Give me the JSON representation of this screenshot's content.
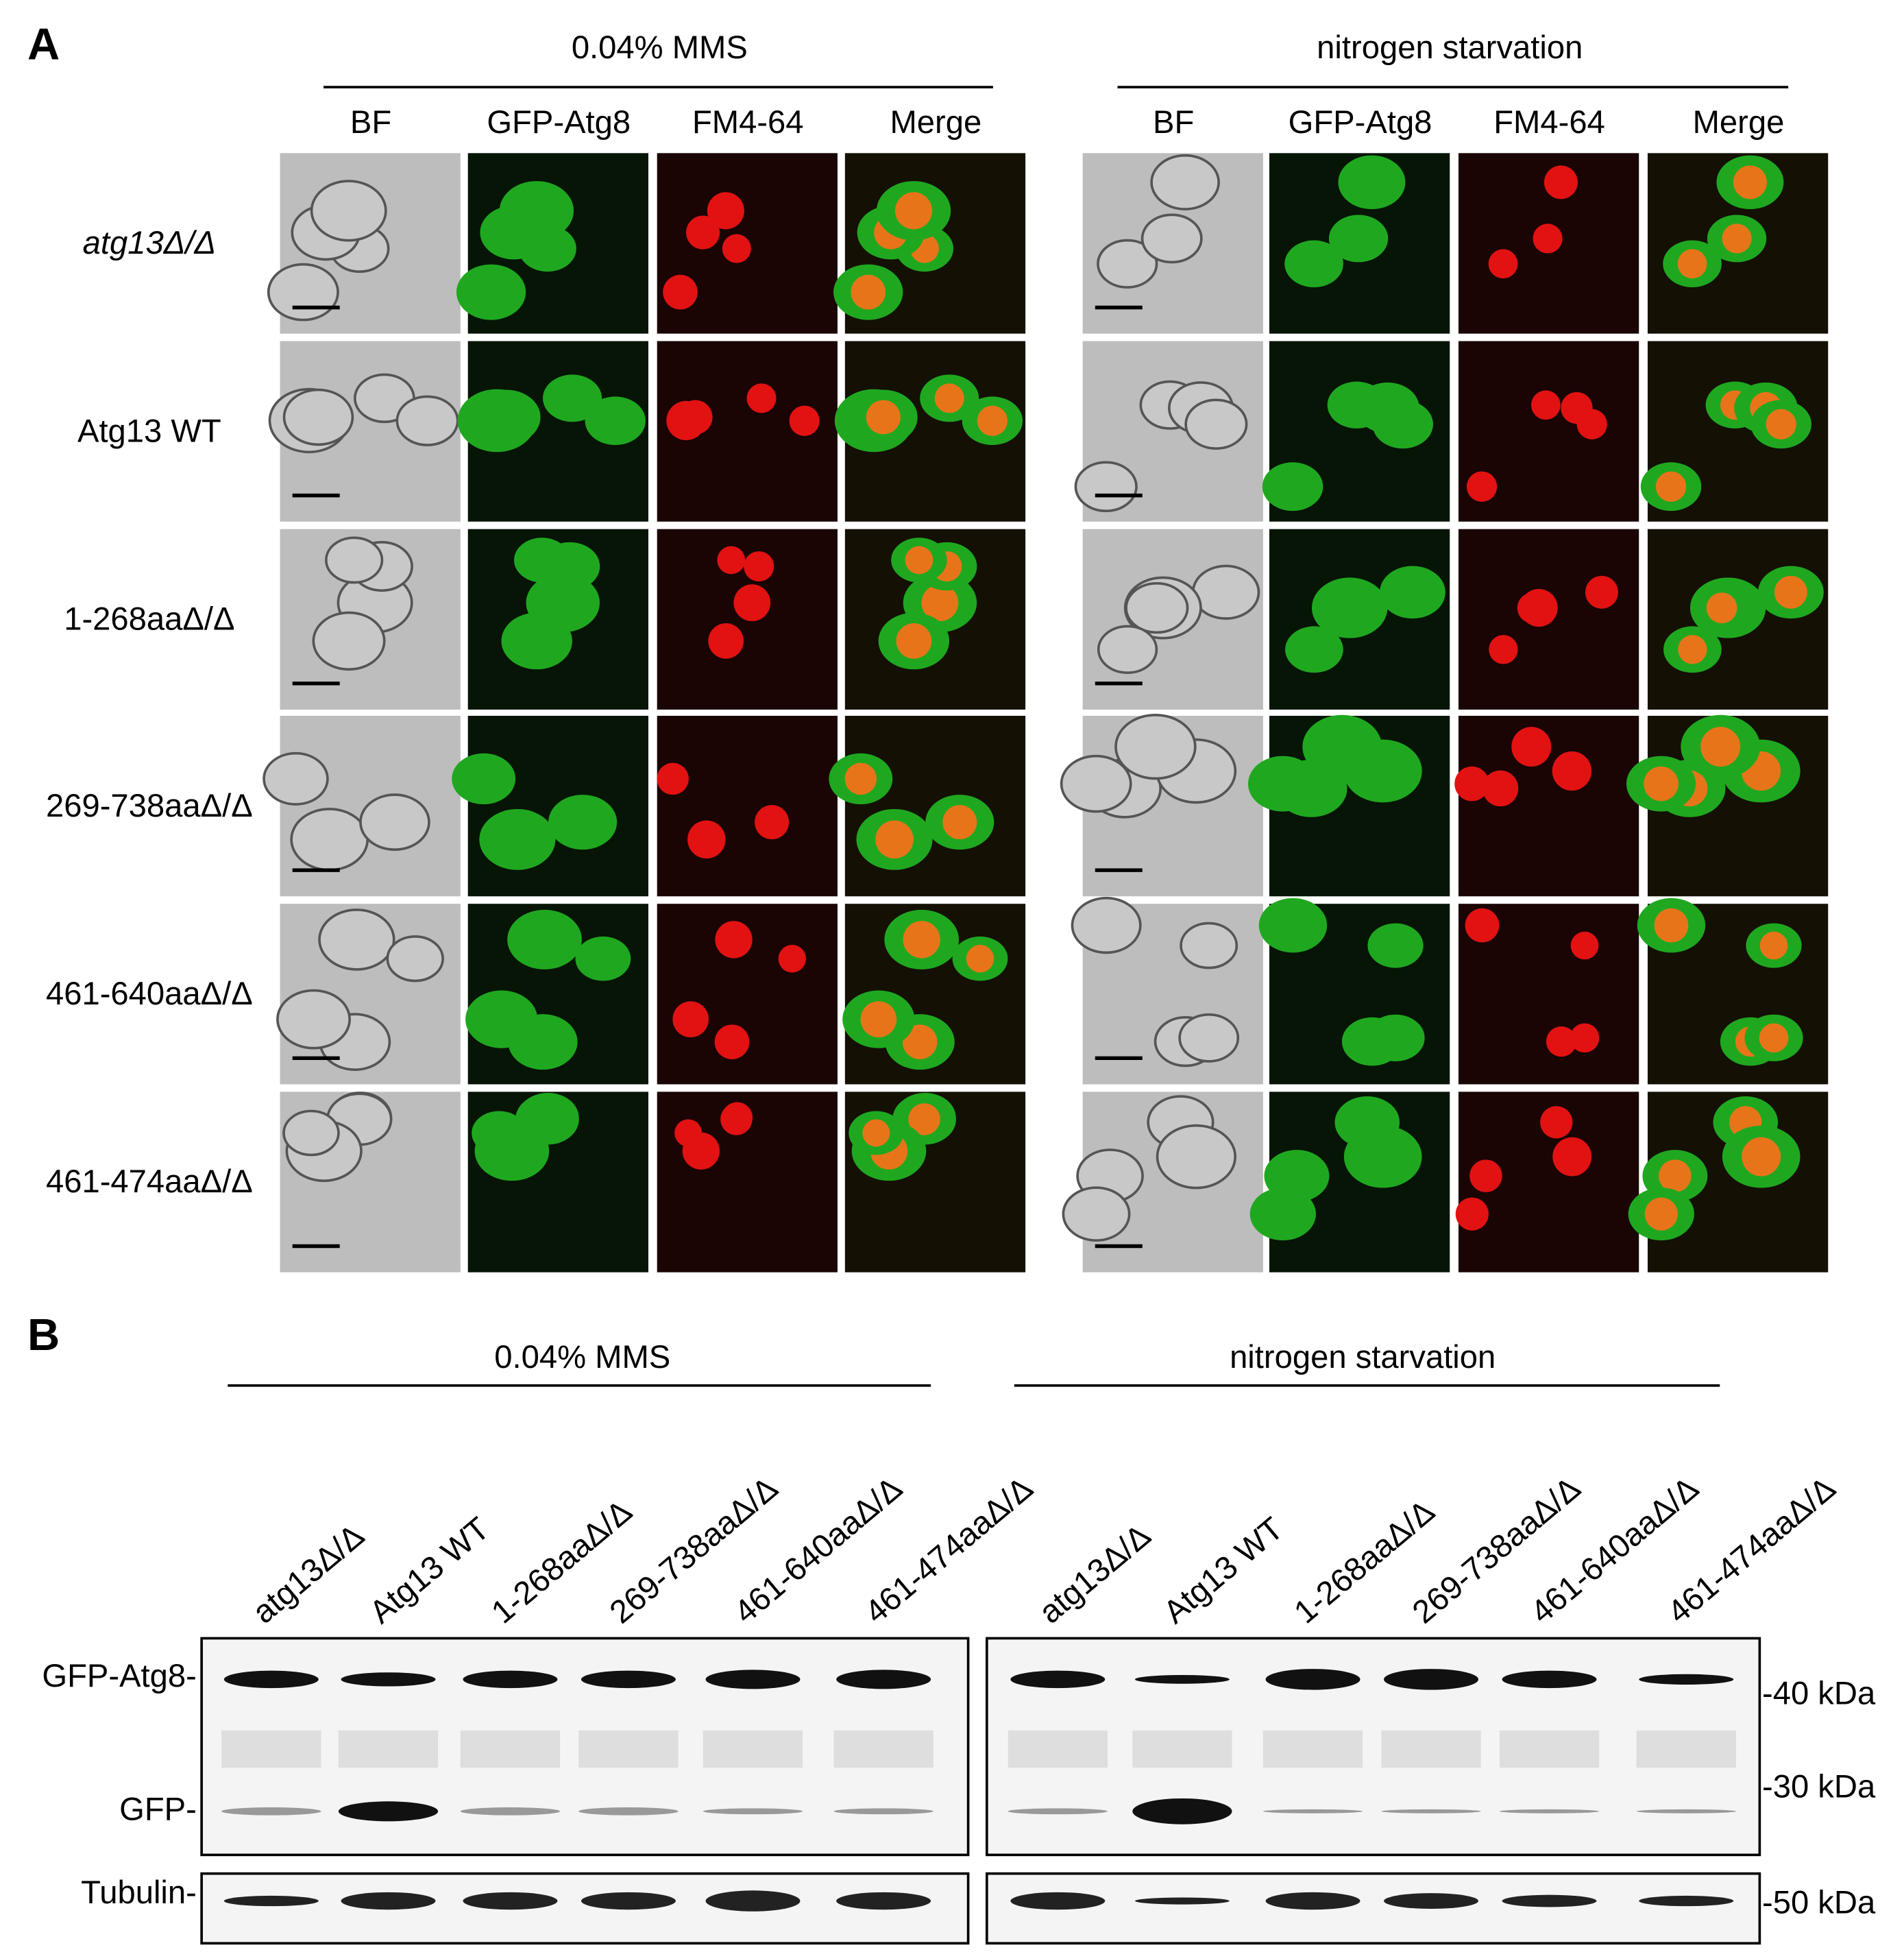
{
  "panel_a": {
    "label": "A",
    "conditions": [
      "0.04% MMS",
      "nitrogen starvation"
    ],
    "channels": [
      "BF",
      "GFP-Atg8",
      "FM4-64",
      "Merge"
    ],
    "rows": [
      "atg13Δ/Δ",
      "Atg13 WT",
      "1-268aaΔ/Δ",
      "269-738aaΔ/Δ",
      "461-640aaΔ/Δ",
      "461-474aaΔ/Δ"
    ]
  },
  "panel_b": {
    "label": "B",
    "conditions": [
      "0.04% MMS",
      "nitrogen starvation"
    ],
    "lanes": [
      "atg13Δ/Δ",
      "Atg13 WT",
      "1-268aaΔ/Δ",
      "269-738aaΔ/Δ",
      "461-640aaΔ/Δ",
      "461-474aaΔ/Δ"
    ],
    "bands": [
      "GFP-Atg8-",
      "GFP-",
      "Tubulin-"
    ],
    "markers": [
      "-40 kDa",
      "-30 kDa",
      "-50 kDa"
    ]
  }
}
